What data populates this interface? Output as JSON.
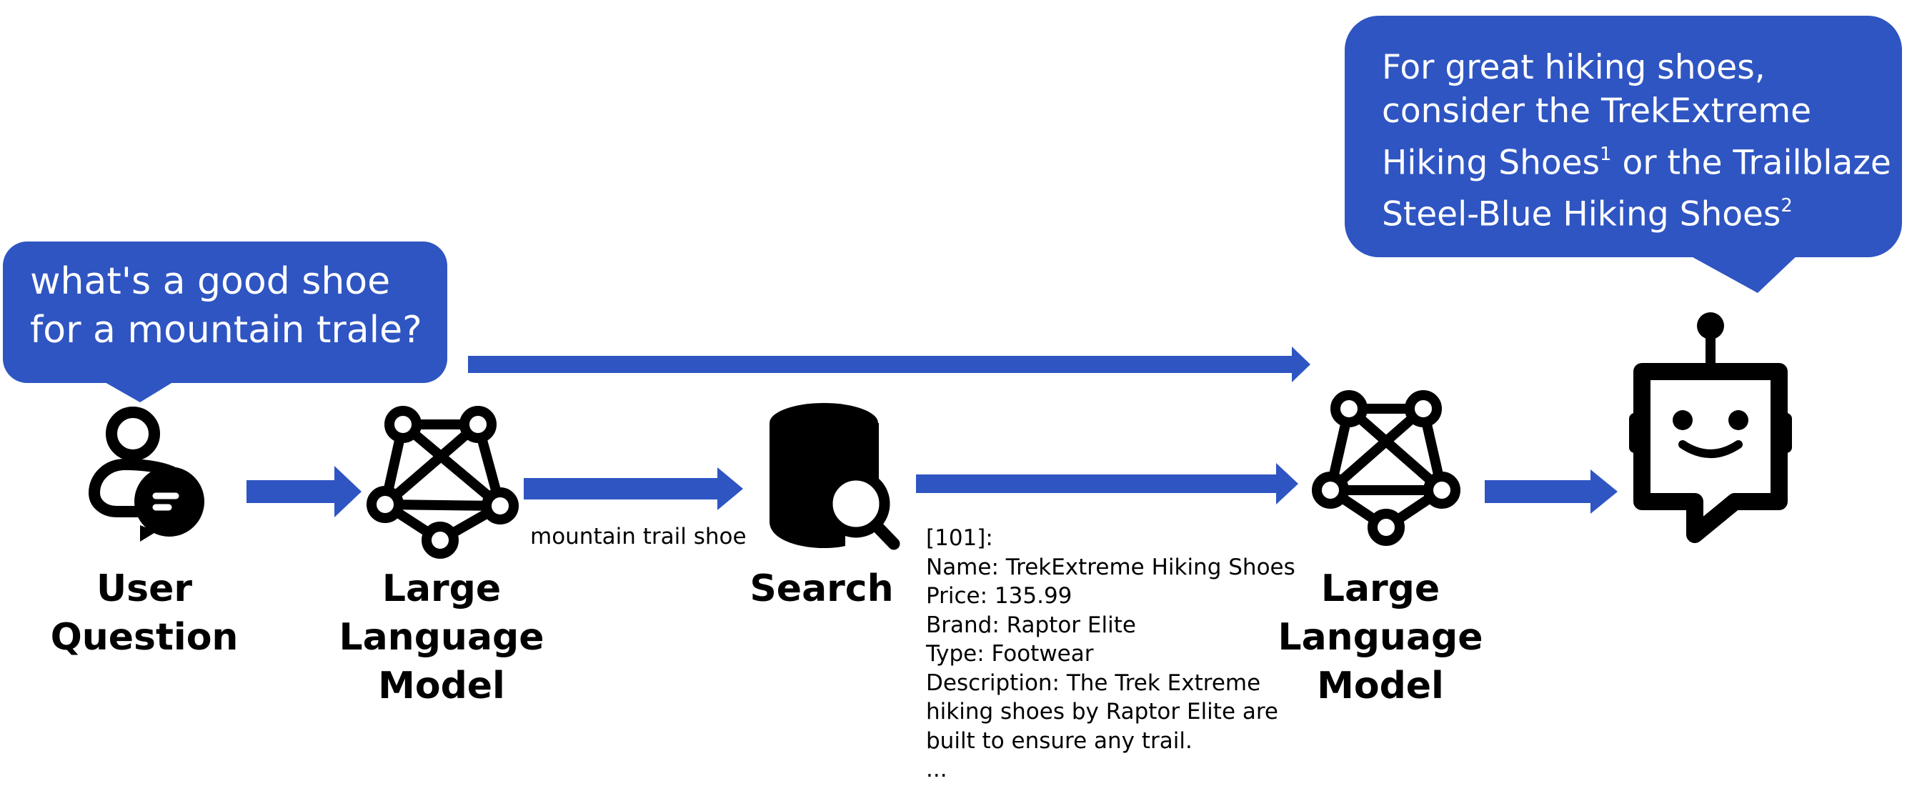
{
  "question_bubble": {
    "lines": [
      "what's a good shoe",
      "for a mountain trale?"
    ]
  },
  "answer_bubble": {
    "lines": [
      {
        "text": "For great hiking shoes,"
      },
      {
        "text": "consider the TrekExtreme"
      },
      {
        "text": "Hiking Shoes",
        "sup": "1",
        "after": "or the Trailblaze"
      },
      {
        "text": "Steel-Blue Hiking Shoes",
        "sup": "2"
      }
    ]
  },
  "nodes": {
    "user_question": {
      "lines": [
        "User",
        "Question"
      ],
      "icon": "user-chat-icon"
    },
    "llm_1": {
      "lines": [
        "Large",
        "Language",
        "Model"
      ],
      "icon": "network-graph-icon"
    },
    "search": {
      "lines": [
        "Search"
      ],
      "icon": "database-search-icon"
    },
    "llm_2": {
      "lines": [
        "Large",
        "Language",
        "Model"
      ],
      "icon": "network-graph-icon"
    },
    "bot": {
      "icon": "robot-chat-icon"
    }
  },
  "edge_labels": {
    "search_query": "mountain trail shoe"
  },
  "search_result": {
    "lines": [
      "[101]:",
      "Name: TrekExtreme Hiking Shoes",
      "Price: 135.99",
      "Brand: Raptor Elite",
      "Type: Footwear",
      "Description: The Trek Extreme",
      "hiking shoes by Raptor Elite are",
      "built to ensure any trail.",
      "..."
    ]
  },
  "colors": {
    "accent": "#2f55c2",
    "text": "#000000",
    "bubble_text": "#ffffff"
  }
}
